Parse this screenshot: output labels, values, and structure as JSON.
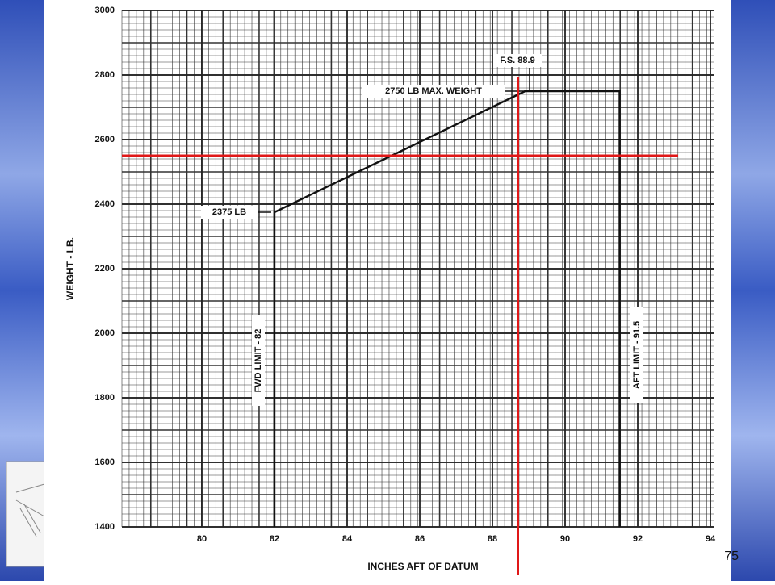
{
  "chart_data": {
    "type": "line",
    "y_label": "WEIGHT - LB.",
    "x_label": "INCHES AFT OF DATUM",
    "x": [
      82,
      82,
      88.9,
      91.5,
      91.5
    ],
    "series": [
      {
        "color": "#111111",
        "values": [
          1400,
          2375,
          2750,
          2750,
          1400
        ]
      }
    ],
    "xlim": [
      77.8,
      94.1
    ],
    "ylim": [
      1400,
      3000
    ],
    "xticks": [
      80,
      82,
      84,
      86,
      88,
      90,
      92,
      94
    ],
    "yticks": [
      1400,
      1600,
      1800,
      2000,
      2200,
      2400,
      2600,
      2800,
      3000
    ],
    "grid": true,
    "reference_lines": {
      "x": 88.7,
      "y": 2550,
      "color": "#e01818"
    },
    "annotations": [
      "2375 LB",
      "2750 LB MAX. WEIGHT",
      "F.S. 88.9",
      "FWD LIMIT - 82",
      "AFT LIMIT - 91.5"
    ],
    "page_number": "75"
  }
}
